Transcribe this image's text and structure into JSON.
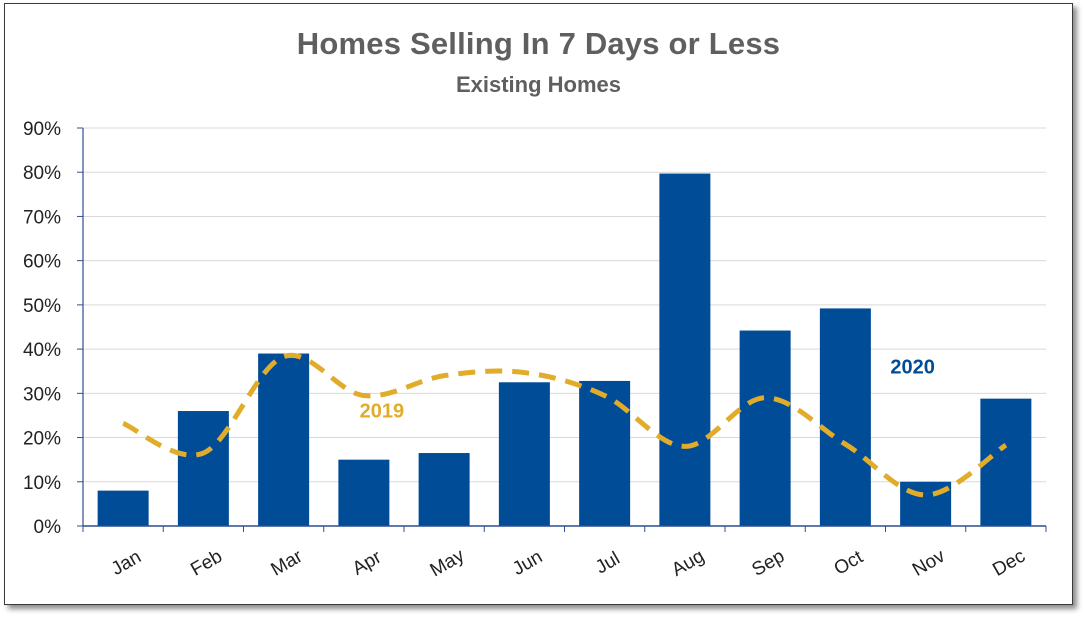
{
  "chart_data": {
    "type": "bar",
    "title": "Homes Selling In 7 Days or Less",
    "subtitle": "Existing Homes",
    "xlabel": "",
    "ylabel": "",
    "ylim": [
      0,
      90
    ],
    "yticks": [
      "0%",
      "10%",
      "20%",
      "30%",
      "40%",
      "50%",
      "60%",
      "70%",
      "80%",
      "90%"
    ],
    "categories": [
      "Jan",
      "Feb",
      "Mar",
      "Apr",
      "May",
      "Jun",
      "Jul",
      "Aug",
      "Sep",
      "Oct",
      "Nov",
      "Dec"
    ],
    "grid": true,
    "legend": "none",
    "series": [
      {
        "name": "2020",
        "type": "bar",
        "color": "#004C97",
        "values": [
          8,
          26,
          39,
          15,
          16.5,
          32.5,
          32.8,
          79.7,
          44.2,
          49.2,
          10,
          28.8
        ]
      },
      {
        "name": "2019",
        "type": "line",
        "style": "dashed",
        "color": "#E2AC2B",
        "values": [
          23.2,
          16.5,
          38.3,
          29.5,
          34,
          34.7,
          29.5,
          18,
          29,
          18.5,
          7,
          18.3
        ]
      }
    ]
  }
}
